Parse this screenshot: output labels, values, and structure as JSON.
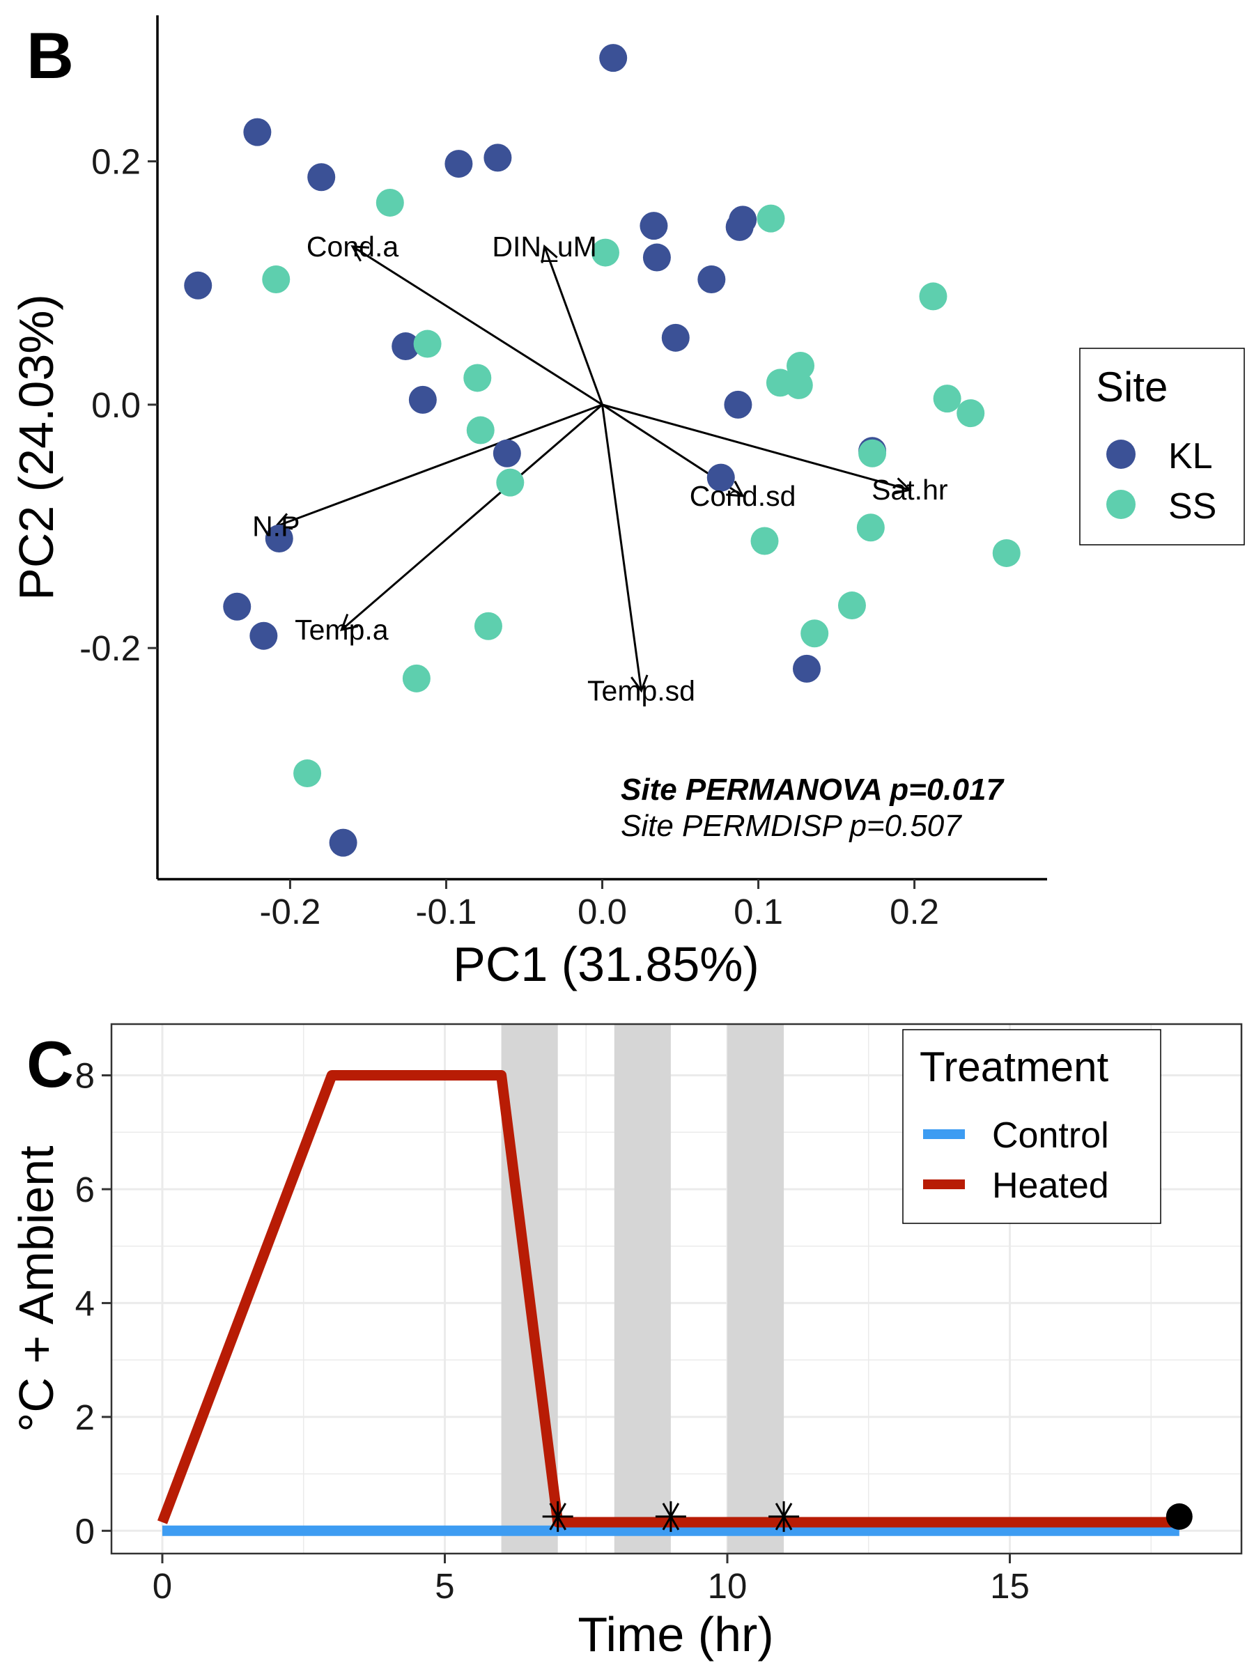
{
  "panel_b": {
    "letter": "B",
    "legend_title": "Site",
    "legend_items": [
      "KL",
      "SS"
    ],
    "stats": {
      "permanova": "Site PERMANOVA p=0.017",
      "permdisp": "Site PERMDISP p=0.507"
    }
  },
  "panel_c": {
    "letter": "C",
    "legend_title": "Treatment",
    "legend_items": [
      "Control",
      "Heated"
    ]
  },
  "chart_data": [
    {
      "type": "scatter",
      "panel": "B",
      "xlabel": "PC1 (31.85%)",
      "ylabel": "PC2 (24.03%)",
      "xlim": [
        -0.285,
        0.285
      ],
      "ylim": [
        -0.39,
        0.32
      ],
      "xticks": [
        -0.2,
        -0.1,
        0.0,
        0.1,
        0.2
      ],
      "xtick_labels": [
        "-0.2",
        "-0.1",
        "0.0",
        "0.1",
        "0.2"
      ],
      "yticks": [
        -0.2,
        0.0,
        0.2
      ],
      "ytick_labels": [
        "-0.2",
        "0.0",
        "0.2"
      ],
      "grid": false,
      "legend_position": "right",
      "series": [
        {
          "name": "KL",
          "color": "#3b5196",
          "points": [
            [
              0.007,
              0.285
            ],
            [
              -0.221,
              0.224
            ],
            [
              -0.18,
              0.187
            ],
            [
              -0.092,
              0.198
            ],
            [
              -0.067,
              0.203
            ],
            [
              0.033,
              0.147
            ],
            [
              0.035,
              0.121
            ],
            [
              0.088,
              0.146
            ],
            [
              0.09,
              0.152
            ],
            [
              -0.259,
              0.098
            ],
            [
              0.07,
              0.103
            ],
            [
              0.047,
              0.055
            ],
            [
              -0.126,
              0.048
            ],
            [
              -0.115,
              0.004
            ],
            [
              0.087,
              0.0
            ],
            [
              -0.061,
              -0.04
            ],
            [
              0.173,
              -0.038
            ],
            [
              0.076,
              -0.06
            ],
            [
              -0.207,
              -0.11
            ],
            [
              -0.234,
              -0.166
            ],
            [
              -0.217,
              -0.19
            ],
            [
              0.131,
              -0.217
            ],
            [
              -0.166,
              -0.36
            ]
          ]
        },
        {
          "name": "SS",
          "color": "#5ecfae",
          "points": [
            [
              -0.136,
              0.166
            ],
            [
              0.108,
              0.153
            ],
            [
              0.002,
              0.125
            ],
            [
              -0.209,
              0.103
            ],
            [
              0.212,
              0.089
            ],
            [
              -0.112,
              0.05
            ],
            [
              0.127,
              0.032
            ],
            [
              -0.08,
              0.022
            ],
            [
              0.114,
              0.018
            ],
            [
              0.126,
              0.016
            ],
            [
              0.221,
              0.005
            ],
            [
              0.236,
              -0.007
            ],
            [
              -0.078,
              -0.021
            ],
            [
              0.173,
              -0.04
            ],
            [
              -0.059,
              -0.064
            ],
            [
              0.172,
              -0.101
            ],
            [
              0.104,
              -0.112
            ],
            [
              0.259,
              -0.122
            ],
            [
              0.16,
              -0.165
            ],
            [
              -0.073,
              -0.182
            ],
            [
              0.136,
              -0.188
            ],
            [
              -0.119,
              -0.225
            ],
            [
              -0.189,
              -0.303
            ]
          ]
        }
      ],
      "vectors": [
        {
          "label": "Cond.a",
          "x": -0.16,
          "y": 0.13
        },
        {
          "label": "DIN_uM",
          "x": -0.037,
          "y": 0.13
        },
        {
          "label": "Sat.hr",
          "x": 0.197,
          "y": -0.07
        },
        {
          "label": "Cond.sd",
          "x": 0.09,
          "y": -0.075
        },
        {
          "label": "N.P",
          "x": -0.209,
          "y": -0.1
        },
        {
          "label": "Temp.a",
          "x": -0.167,
          "y": -0.185
        },
        {
          "label": "Temp.sd",
          "x": 0.025,
          "y": -0.235
        }
      ]
    },
    {
      "type": "line",
      "panel": "C",
      "xlabel": "Time (hr)",
      "ylabel": "°C + Ambient",
      "xlim": [
        -0.9,
        19.1
      ],
      "ylim": [
        -0.4,
        8.9
      ],
      "xticks": [
        0,
        5,
        10,
        15
      ],
      "xtick_labels": [
        "0",
        "5",
        "10",
        "15"
      ],
      "yticks": [
        0,
        2,
        4,
        6,
        8
      ],
      "ytick_labels": [
        "0",
        "2",
        "4",
        "6",
        "8"
      ],
      "grid": true,
      "legend_position": "top-right",
      "shaded_intervals": [
        [
          6,
          7
        ],
        [
          8,
          9
        ],
        [
          10,
          11
        ]
      ],
      "series": [
        {
          "name": "Control",
          "color": "#3d9cf2",
          "x": [
            0,
            18
          ],
          "y": [
            0,
            0
          ]
        },
        {
          "name": "Heated",
          "color": "#b81c05",
          "x": [
            0,
            3,
            6,
            7,
            18
          ],
          "y": [
            0.15,
            8,
            8,
            0.15,
            0.15
          ]
        }
      ],
      "sampling_markers": {
        "symbol": "asterisk",
        "x": [
          7,
          9,
          11
        ],
        "y": [
          0.25,
          0.25,
          0.25
        ]
      },
      "end_marker": {
        "symbol": "dot",
        "x": 18,
        "y": 0.25
      }
    }
  ]
}
